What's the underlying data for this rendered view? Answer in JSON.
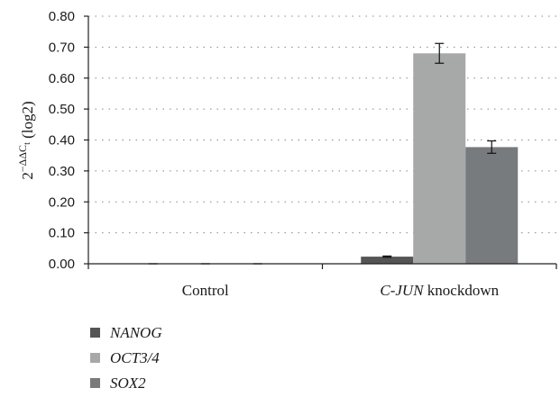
{
  "chart_data": {
    "type": "bar",
    "categories": [
      {
        "italic": "",
        "text": "Control"
      },
      {
        "italic": "C-JUN",
        "text": " knockdown"
      }
    ],
    "series": [
      {
        "name": "NANOG",
        "color": "#555555",
        "values": [
          0.0,
          0.023
        ],
        "errors": [
          0.0,
          0.002
        ]
      },
      {
        "name": "OCT3/4",
        "color": "#a7a9a9",
        "values": [
          0.0,
          0.68
        ],
        "errors": [
          0.0,
          0.032
        ]
      },
      {
        "name": "SOX2",
        "color": "#777b7e",
        "values": [
          0.0,
          0.377
        ],
        "errors": [
          0.0,
          0.02
        ]
      }
    ],
    "ylabel": {
      "base": "2",
      "sup": "−ΔΔC",
      "sub": "t",
      "suffix": " (log2)"
    },
    "ylim": [
      0,
      0.8
    ],
    "yticks": [
      "0.00",
      "0.10",
      "0.20",
      "0.30",
      "0.40",
      "0.50",
      "0.60",
      "0.70",
      "0.80"
    ],
    "grid": true,
    "legend_position": "bottom-left"
  }
}
